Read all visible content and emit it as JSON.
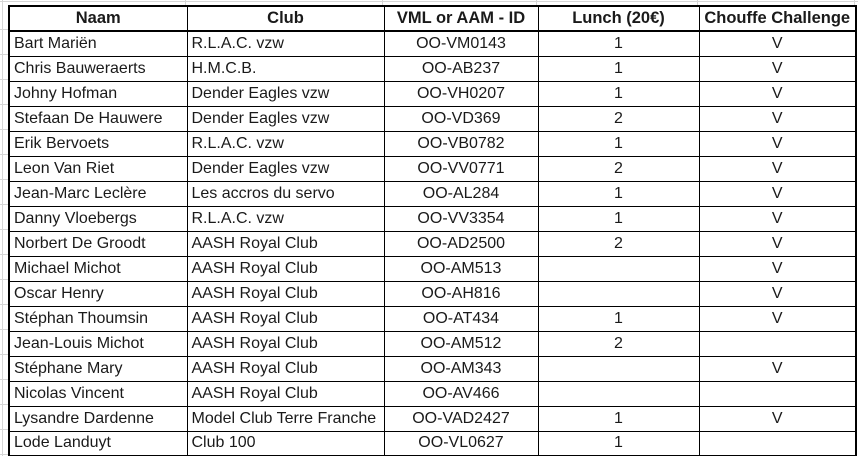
{
  "table": {
    "columns": [
      {
        "key": "name",
        "label": "Naam"
      },
      {
        "key": "club",
        "label": "Club"
      },
      {
        "key": "id",
        "label": "VML or AAM - ID"
      },
      {
        "key": "lunch",
        "label": "Lunch (20€)"
      },
      {
        "key": "chouffe",
        "label": "Chouffe Challenge"
      }
    ],
    "rows": [
      {
        "name": "Bart Mariën",
        "club": "R.L.A.C. vzw",
        "id": "OO-VM0143",
        "lunch": "1",
        "chouffe": "V"
      },
      {
        "name": "Chris Bauweraerts",
        "club": "H.M.C.B.",
        "id": "OO-AB237",
        "lunch": "1",
        "chouffe": "V"
      },
      {
        "name": "Johny Hofman",
        "club": "Dender Eagles vzw",
        "id": "OO-VH0207",
        "lunch": "1",
        "chouffe": "V"
      },
      {
        "name": "Stefaan De Hauwere",
        "club": "Dender Eagles vzw",
        "id": "OO-VD369",
        "lunch": "2",
        "chouffe": "V"
      },
      {
        "name": "Erik Bervoets",
        "club": "R.L.A.C. vzw",
        "id": "OO-VB0782",
        "lunch": "1",
        "chouffe": "V"
      },
      {
        "name": "Leon Van Riet",
        "club": "Dender Eagles vzw",
        "id": "OO-VV0771",
        "lunch": "2",
        "chouffe": "V"
      },
      {
        "name": "Jean-Marc Leclère",
        "club": "Les accros du servo",
        "id": "OO-AL284",
        "lunch": "1",
        "chouffe": "V"
      },
      {
        "name": "Danny Vloebergs",
        "club": "R.L.A.C. vzw",
        "id": "OO-VV3354",
        "lunch": "1",
        "chouffe": "V"
      },
      {
        "name": "Norbert De Groodt",
        "club": "AASH Royal Club",
        "id": "OO-AD2500",
        "lunch": "2",
        "chouffe": "V"
      },
      {
        "name": "Michael Michot",
        "club": "AASH Royal Club",
        "id": "OO-AM513",
        "lunch": "",
        "chouffe": "V"
      },
      {
        "name": "Oscar Henry",
        "club": "AASH Royal Club",
        "id": "OO-AH816",
        "lunch": "",
        "chouffe": "V"
      },
      {
        "name": "Stéphan Thoumsin",
        "club": "AASH Royal Club",
        "id": "OO-AT434",
        "lunch": "1",
        "chouffe": "V"
      },
      {
        "name": "Jean-Louis Michot",
        "club": "AASH Royal Club",
        "id": "OO-AM512",
        "lunch": "2",
        "chouffe": ""
      },
      {
        "name": "Stéphane Mary",
        "club": "AASH Royal Club",
        "id": "OO-AM343",
        "lunch": "",
        "chouffe": "V"
      },
      {
        "name": "Nicolas Vincent",
        "club": "AASH Royal Club",
        "id": "OO-AV466",
        "lunch": "",
        "chouffe": ""
      },
      {
        "name": "Lysandre Dardenne",
        "club": "Model Club Terre Franche",
        "id": "OO-VAD2427",
        "lunch": "1",
        "chouffe": "V"
      },
      {
        "name": "Lode Landuyt",
        "club": "Club 100",
        "id": "OO-VL0627",
        "lunch": "1",
        "chouffe": ""
      }
    ]
  },
  "colors": {
    "table_border": "#000000",
    "text": "#1a1a1a",
    "background": "#ffffff",
    "faint_gridline": "#d6d6d6"
  }
}
